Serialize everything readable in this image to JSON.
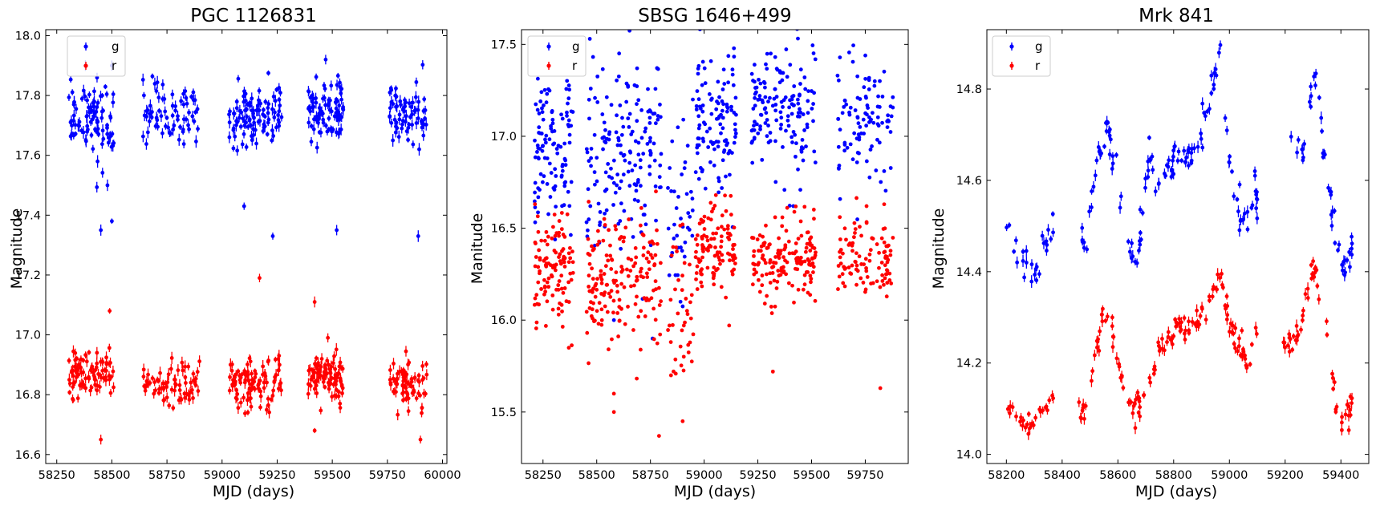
{
  "chart_data": [
    {
      "type": "scatter",
      "title": "PGC 1126831",
      "xlabel": "MJD (days)",
      "ylabel": "Magnitude",
      "xlim": [
        58200,
        60020
      ],
      "ylim": [
        18.02,
        16.57
      ],
      "xticks": [
        58250,
        58500,
        58750,
        59000,
        59250,
        59500,
        59750,
        60000
      ],
      "yticks": [
        16.6,
        16.8,
        17.0,
        17.2,
        17.4,
        17.6,
        17.8,
        18.0
      ],
      "ytick_decimals": 1,
      "legend": "upper-left",
      "error_bars": true,
      "seed": 11,
      "series": [
        {
          "name": "g",
          "color": "#0000ff",
          "segments": [
            [
              58300,
              58510,
              90,
              17.72,
              0.06
            ],
            [
              58640,
              58900,
              70,
              17.73,
              0.05
            ],
            [
              59030,
              59270,
              100,
              17.73,
              0.05
            ],
            [
              59390,
              59550,
              90,
              17.75,
              0.05
            ],
            [
              59760,
              59930,
              70,
              17.73,
              0.05
            ]
          ],
          "outliers": [
            [
              58450,
              17.35
            ],
            [
              58500,
              17.38
            ],
            [
              58480,
              17.5
            ],
            [
              59230,
              17.33
            ],
            [
              59520,
              17.35
            ],
            [
              59890,
              17.33
            ],
            [
              59100,
              17.43
            ],
            [
              58500,
              17.9
            ],
            [
              58380,
              17.9
            ],
            [
              59470,
              17.92
            ]
          ]
        },
        {
          "name": "r",
          "color": "#ff0000",
          "segments": [
            [
              58300,
              58510,
              90,
              16.87,
              0.04
            ],
            [
              58640,
              58900,
              70,
              16.84,
              0.04
            ],
            [
              59030,
              59270,
              100,
              16.85,
              0.05
            ],
            [
              59390,
              59550,
              90,
              16.85,
              0.04
            ],
            [
              59760,
              59930,
              70,
              16.84,
              0.04
            ]
          ],
          "outliers": [
            [
              58450,
              16.65
            ],
            [
              58490,
              17.08
            ],
            [
              59170,
              17.19
            ],
            [
              59420,
              17.11
            ],
            [
              59420,
              16.68
            ],
            [
              59900,
              16.65
            ],
            [
              59480,
              16.99
            ]
          ]
        }
      ]
    },
    {
      "type": "scatter",
      "title": "SBSG 1646+499",
      "xlabel": "MJD (days)",
      "ylabel": "Manitude",
      "xlim": [
        58150,
        59950
      ],
      "ylim": [
        17.58,
        15.22
      ],
      "xticks": [
        58250,
        58500,
        58750,
        59000,
        59250,
        59500,
        59750
      ],
      "yticks": [
        15.5,
        16.0,
        16.5,
        17.0,
        17.5
      ],
      "ytick_decimals": 1,
      "legend": "upper-left",
      "error_bars": false,
      "seed": 23,
      "series": [
        {
          "name": "g",
          "color": "#0000ff",
          "segments": [
            [
              58210,
              58390,
              110,
              16.93,
              0.22
            ],
            [
              58450,
              58800,
              170,
              16.85,
              0.25
            ],
            [
              58830,
              58950,
              40,
              16.6,
              0.22
            ],
            [
              58960,
              59150,
              110,
              17.08,
              0.2
            ],
            [
              59220,
              59520,
              150,
              17.12,
              0.18
            ],
            [
              59620,
              59880,
              100,
              17.07,
              0.16
            ]
          ],
          "outliers": [
            [
              58580,
              16.0
            ],
            [
              58760,
              15.9
            ],
            [
              58890,
              16.1
            ],
            [
              59310,
              17.45
            ]
          ]
        },
        {
          "name": "r",
          "color": "#ff0000",
          "segments": [
            [
              58210,
              58390,
              110,
              16.27,
              0.14
            ],
            [
              58450,
              58800,
              170,
              16.2,
              0.17
            ],
            [
              58830,
              58950,
              40,
              16.05,
              0.25
            ],
            [
              58960,
              59150,
              110,
              16.38,
              0.12
            ],
            [
              59220,
              59520,
              150,
              16.35,
              0.12
            ],
            [
              59620,
              59880,
              100,
              16.33,
              0.12
            ]
          ],
          "outliers": [
            [
              58580,
              15.5
            ],
            [
              58790,
              15.37
            ],
            [
              58900,
              15.45
            ],
            [
              59320,
              15.72
            ],
            [
              59820,
              15.63
            ],
            [
              58580,
              15.6
            ]
          ]
        }
      ]
    },
    {
      "type": "scatter",
      "title": "Mrk 841",
      "xlabel": "MJD (days)",
      "ylabel": "Magnitude",
      "xlim": [
        58130,
        59500
      ],
      "ylim": [
        14.93,
        13.98
      ],
      "xticks": [
        58200,
        58400,
        58600,
        58800,
        59000,
        59200,
        59400
      ],
      "yticks": [
        14.0,
        14.2,
        14.4,
        14.6,
        14.8
      ],
      "ytick_decimals": 1,
      "legend": "upper-left",
      "error_bars": true,
      "seed": 37,
      "series": [
        {
          "name": "g",
          "color": "#0000ff",
          "track": [
            [
              58200,
              14.48
            ],
            [
              58240,
              14.43
            ],
            [
              58280,
              14.42
            ],
            [
              58320,
              14.4
            ],
            [
              58360,
              14.5
            ],
            [
              58480,
              14.45
            ],
            [
              58520,
              14.62
            ],
            [
              58560,
              14.72
            ],
            [
              58620,
              14.55
            ],
            [
              58650,
              14.43
            ],
            [
              58670,
              14.42
            ],
            [
              58700,
              14.6
            ],
            [
              58720,
              14.65
            ],
            [
              58750,
              14.58
            ],
            [
              58820,
              14.68
            ],
            [
              58860,
              14.63
            ],
            [
              58880,
              14.68
            ],
            [
              58930,
              14.78
            ],
            [
              58970,
              14.88
            ],
            [
              59000,
              14.65
            ],
            [
              59050,
              14.5
            ],
            [
              59080,
              14.55
            ],
            [
              59220,
              14.7
            ],
            [
              59260,
              14.63
            ],
            [
              59290,
              14.78
            ],
            [
              59310,
              14.85
            ],
            [
              59330,
              14.7
            ],
            [
              59360,
              14.58
            ],
            [
              59400,
              14.42
            ],
            [
              59430,
              14.4
            ],
            [
              59450,
              14.5
            ]
          ],
          "noise": 0.02,
          "gaps": [
            [
              58370,
              58470
            ],
            [
              59100,
              59210
            ]
          ],
          "n": 210
        },
        {
          "name": "r",
          "color": "#ff0000",
          "track": [
            [
              58200,
              14.12
            ],
            [
              58240,
              14.08
            ],
            [
              58300,
              14.07
            ],
            [
              58360,
              14.12
            ],
            [
              58470,
              14.08
            ],
            [
              58500,
              14.14
            ],
            [
              58540,
              14.3
            ],
            [
              58580,
              14.27
            ],
            [
              58620,
              14.15
            ],
            [
              58660,
              14.1
            ],
            [
              58700,
              14.14
            ],
            [
              58740,
              14.22
            ],
            [
              58800,
              14.28
            ],
            [
              58860,
              14.27
            ],
            [
              58920,
              14.33
            ],
            [
              58970,
              14.4
            ],
            [
              59000,
              14.27
            ],
            [
              59050,
              14.22
            ],
            [
              59070,
              14.18
            ],
            [
              59120,
              14.33
            ],
            [
              59200,
              14.24
            ],
            [
              59260,
              14.28
            ],
            [
              59300,
              14.42
            ],
            [
              59340,
              14.32
            ],
            [
              59380,
              14.12
            ],
            [
              59410,
              14.07
            ],
            [
              59450,
              14.12
            ]
          ],
          "noise": 0.015,
          "gaps": [
            [
              58370,
              58460
            ],
            [
              59110,
              59190
            ]
          ],
          "n": 230
        }
      ]
    }
  ]
}
